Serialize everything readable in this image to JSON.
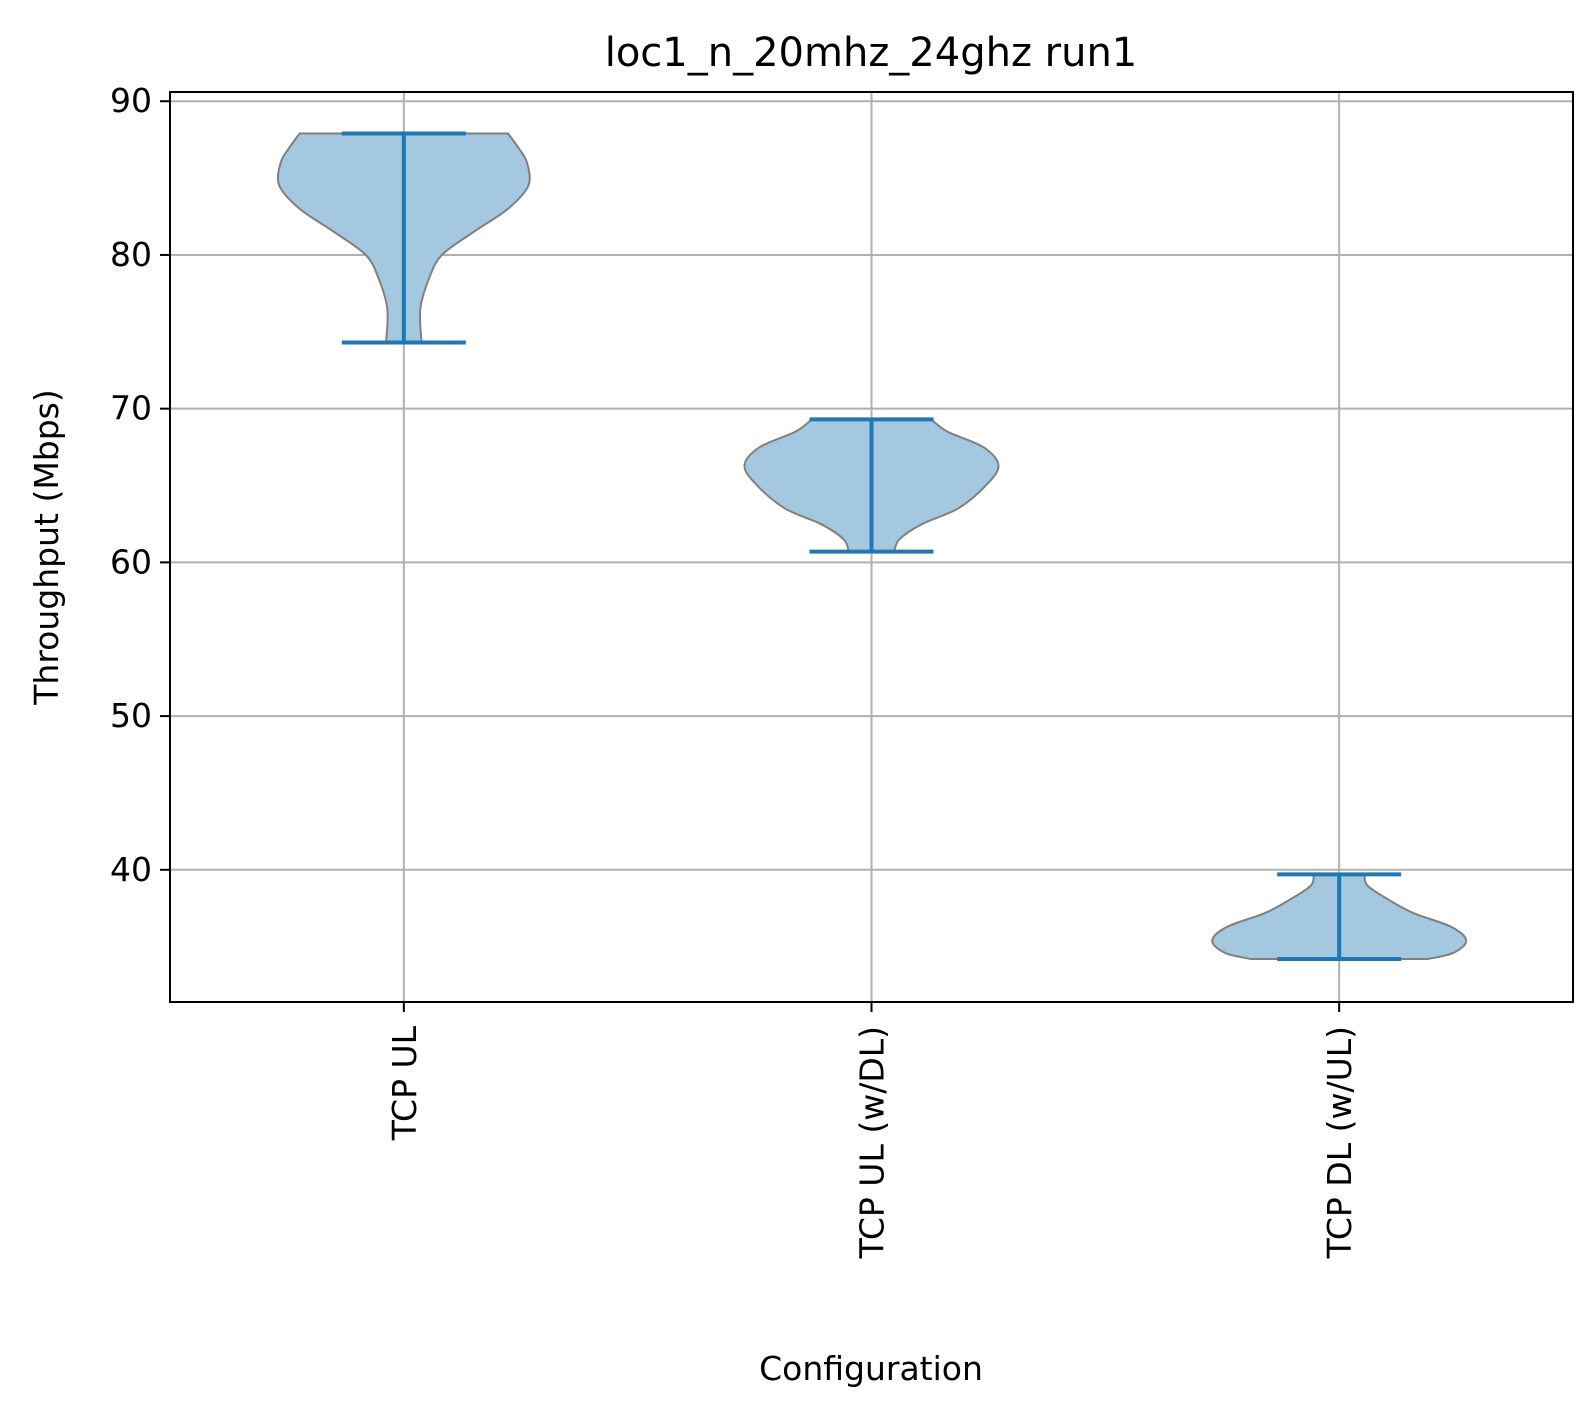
{
  "chart_data": {
    "type": "violin",
    "title": "loc1_n_20mhz_24ghz run1",
    "xlabel": "Configuration",
    "ylabel": "Throughput (Mbps)",
    "ylim": [
      31.4,
      90.6
    ],
    "yticks": [
      40,
      50,
      60,
      70,
      80,
      90
    ],
    "grid": true,
    "categories": [
      "TCP  UL",
      "TCP UL (w/DL)",
      "TCP DL (w/UL)"
    ],
    "violins": [
      {
        "category": "TCP  UL",
        "min": 74.3,
        "max": 87.9,
        "density": [
          [
            74.3,
            0.14
          ],
          [
            76.5,
            0.13
          ],
          [
            78.5,
            0.2
          ],
          [
            80.0,
            0.3
          ],
          [
            81.5,
            0.55
          ],
          [
            83.0,
            0.82
          ],
          [
            84.5,
            0.98
          ],
          [
            86.0,
            0.97
          ],
          [
            87.0,
            0.9
          ],
          [
            87.9,
            0.82
          ]
        ]
      },
      {
        "category": "TCP UL (w/DL)",
        "min": 60.7,
        "max": 69.3,
        "density": [
          [
            60.7,
            0.18
          ],
          [
            61.5,
            0.22
          ],
          [
            62.5,
            0.4
          ],
          [
            63.5,
            0.68
          ],
          [
            65.0,
            0.9
          ],
          [
            66.3,
            1.0
          ],
          [
            67.5,
            0.88
          ],
          [
            68.5,
            0.6
          ],
          [
            69.3,
            0.47
          ]
        ]
      },
      {
        "category": "TCP DL (w/UL)",
        "min": 34.2,
        "max": 39.7,
        "density": [
          [
            34.2,
            0.7
          ],
          [
            34.6,
            0.9
          ],
          [
            35.4,
            1.0
          ],
          [
            36.3,
            0.88
          ],
          [
            37.2,
            0.58
          ],
          [
            38.2,
            0.36
          ],
          [
            39.0,
            0.22
          ],
          [
            39.7,
            0.2
          ]
        ]
      }
    ],
    "colors": {
      "body_fill": "#a5c8e1",
      "body_edge": "#808080",
      "whisker": "#1f77b4",
      "grid": "#b0b0b0"
    }
  }
}
